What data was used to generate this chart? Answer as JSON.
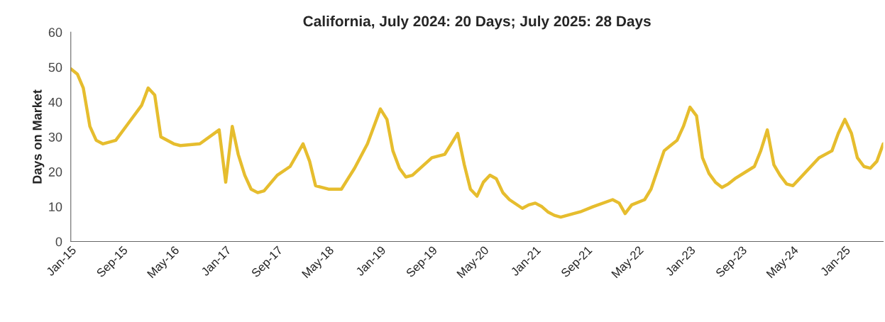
{
  "chart_data": {
    "type": "line",
    "title": "California, July 2024: 20 Days; July 2025: 28 Days",
    "ylabel": "Days on Market",
    "x": [
      "2015-01",
      "2015-02",
      "2015-03",
      "2015-04",
      "2015-05",
      "2015-06",
      "2015-08",
      "2015-10",
      "2015-12",
      "2016-01",
      "2016-02",
      "2016-03",
      "2016-05",
      "2016-06",
      "2016-09",
      "2016-12",
      "2017-01",
      "2017-02",
      "2017-03",
      "2017-04",
      "2017-05",
      "2017-06",
      "2017-07",
      "2017-09",
      "2017-11",
      "2018-01",
      "2018-02",
      "2018-03",
      "2018-05",
      "2018-07",
      "2018-09",
      "2018-11",
      "2019-01",
      "2019-02",
      "2019-03",
      "2019-04",
      "2019-05",
      "2019-06",
      "2019-09",
      "2019-11",
      "2020-01",
      "2020-02",
      "2020-03",
      "2020-04",
      "2020-05",
      "2020-06",
      "2020-07",
      "2020-08",
      "2020-09",
      "2020-11",
      "2020-12",
      "2021-01",
      "2021-02",
      "2021-03",
      "2021-04",
      "2021-05",
      "2021-07",
      "2021-08",
      "2021-10",
      "2022-01",
      "2022-02",
      "2022-03",
      "2022-04",
      "2022-06",
      "2022-07",
      "2022-09",
      "2022-10",
      "2022-11",
      "2022-12",
      "2023-01",
      "2023-02",
      "2023-03",
      "2023-04",
      "2023-05",
      "2023-06",
      "2023-07",
      "2023-08",
      "2023-11",
      "2023-12",
      "2024-01",
      "2024-02",
      "2024-03",
      "2024-04",
      "2024-05",
      "2024-09",
      "2024-11",
      "2024-12",
      "2025-01",
      "2025-02",
      "2025-03",
      "2025-04",
      "2025-05",
      "2025-06",
      "2025-07"
    ],
    "series": [
      {
        "color": "#e6bd2e",
        "values": [
          49.5,
          48,
          44,
          33,
          29,
          28,
          29,
          34,
          39,
          44,
          42,
          30,
          28,
          27.5,
          28,
          32,
          17,
          33,
          25,
          19,
          15,
          14,
          14.5,
          19,
          21.5,
          28,
          23,
          16,
          15,
          15,
          21,
          28,
          38,
          35,
          26,
          21,
          18.5,
          19,
          24,
          25,
          31,
          22,
          15,
          13,
          17,
          19,
          18,
          14,
          12,
          9.5,
          10.5,
          11,
          10,
          8.5,
          7.5,
          7,
          8,
          8.5,
          10,
          12,
          11,
          8,
          10.5,
          12,
          15,
          26,
          27.5,
          29,
          33,
          38.5,
          36,
          24,
          19.5,
          17,
          15.5,
          16.5,
          18,
          21.5,
          26,
          32,
          22,
          19,
          16.5,
          16,
          24,
          26,
          31,
          35,
          31,
          24,
          21.5,
          21,
          23,
          28
        ]
      }
    ],
    "xlim": [
      "2015-01",
      "2025-07"
    ],
    "xticks": [
      {
        "value": "2015-01",
        "label": "Jan-15"
      },
      {
        "value": "2015-09",
        "label": "Sep-15"
      },
      {
        "value": "2016-05",
        "label": "May-16"
      },
      {
        "value": "2017-01",
        "label": "Jan-17"
      },
      {
        "value": "2017-09",
        "label": "Sep-17"
      },
      {
        "value": "2018-05",
        "label": "May-18"
      },
      {
        "value": "2019-01",
        "label": "Jan-19"
      },
      {
        "value": "2019-09",
        "label": "Sep-19"
      },
      {
        "value": "2020-05",
        "label": "May-20"
      },
      {
        "value": "2021-01",
        "label": "Jan-21"
      },
      {
        "value": "2021-09",
        "label": "Sep-21"
      },
      {
        "value": "2022-05",
        "label": "May-22"
      },
      {
        "value": "2023-01",
        "label": "Jan-23"
      },
      {
        "value": "2023-09",
        "label": "Sep-23"
      },
      {
        "value": "2024-05",
        "label": "May-24"
      },
      {
        "value": "2025-01",
        "label": "Jan-25"
      }
    ],
    "ylim": [
      0,
      60
    ],
    "yticks": [
      0,
      10,
      20,
      30,
      40,
      50,
      60
    ],
    "grid": false,
    "marker": "none",
    "line_style": "solid"
  }
}
